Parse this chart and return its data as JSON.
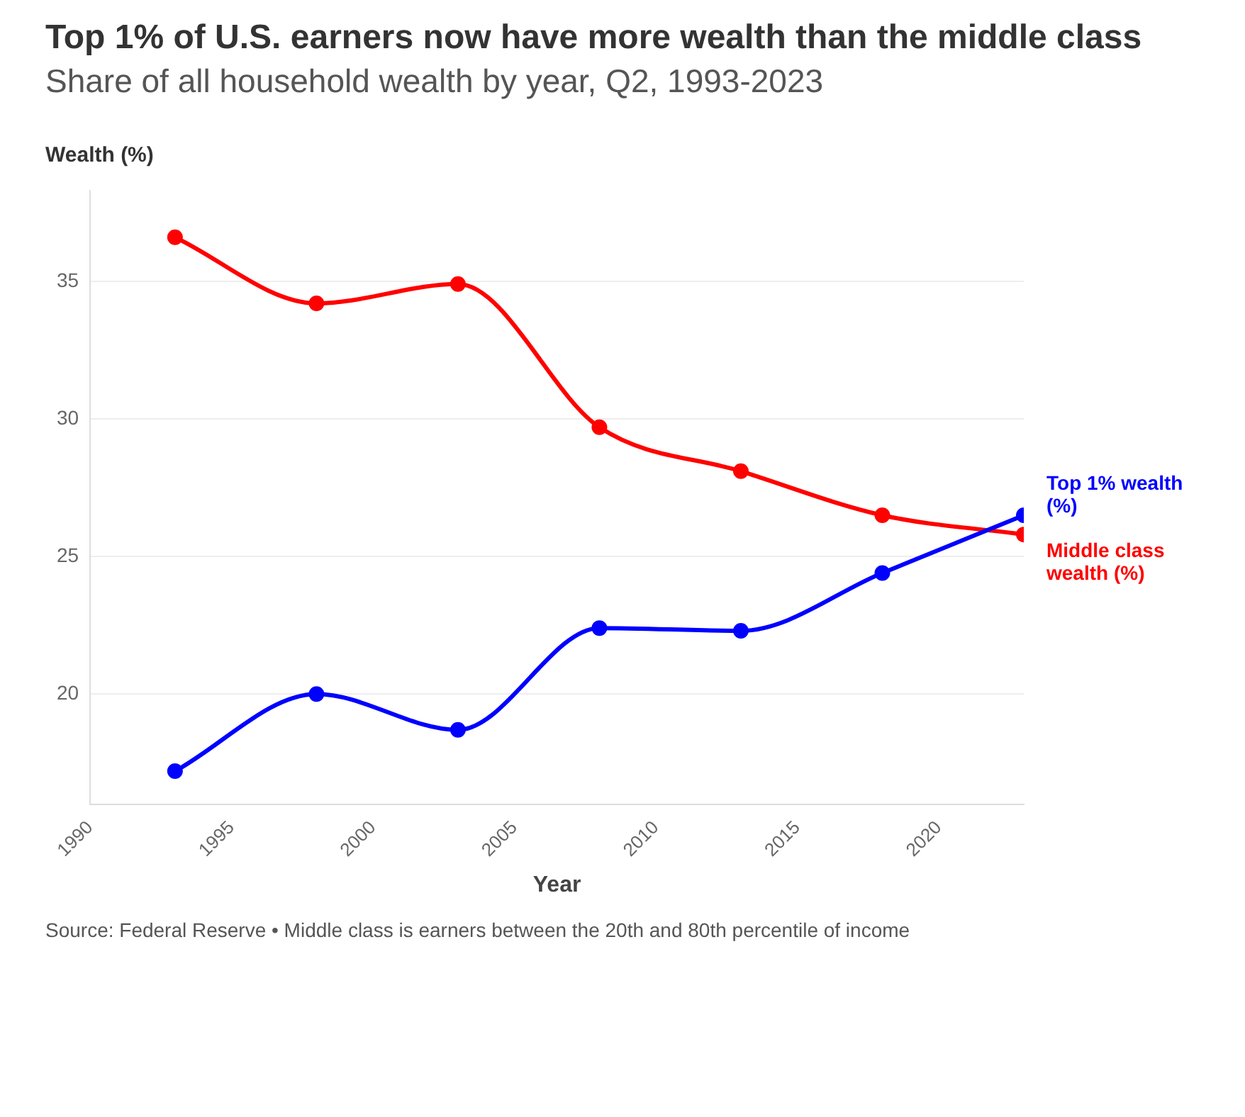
{
  "chart_data": {
    "type": "line",
    "title": "Top 1% of U.S. earners now have more wealth than the middle class",
    "subtitle": "Share of all household wealth by year, Q2, 1993-2023",
    "xlabel": "Year",
    "ylabel": "Wealth (%)",
    "x": [
      1993,
      1998,
      2003,
      2008,
      2013,
      2018,
      2023
    ],
    "series": [
      {
        "name": "Top 1% wealth (%)",
        "color": "#0000ff",
        "values": [
          17.2,
          20.0,
          18.7,
          22.4,
          22.3,
          24.4,
          26.5
        ]
      },
      {
        "name": "Middle class wealth (%)",
        "color": "#ff0000",
        "values": [
          36.6,
          34.2,
          34.9,
          29.7,
          28.1,
          26.5,
          25.8
        ]
      }
    ],
    "xlim": [
      1990,
      2023
    ],
    "xticks": [
      1990,
      1995,
      2000,
      2005,
      2010,
      2015,
      2020
    ],
    "ylim": [
      16,
      38.3
    ],
    "yticks": [
      20,
      25,
      30,
      35
    ],
    "grid": "y",
    "legend": false,
    "marker": "circle",
    "line_style": "solid",
    "annotations": [
      "Source: Federal Reserve • Middle class is earners between the 20th and 80th percentile of income"
    ]
  }
}
